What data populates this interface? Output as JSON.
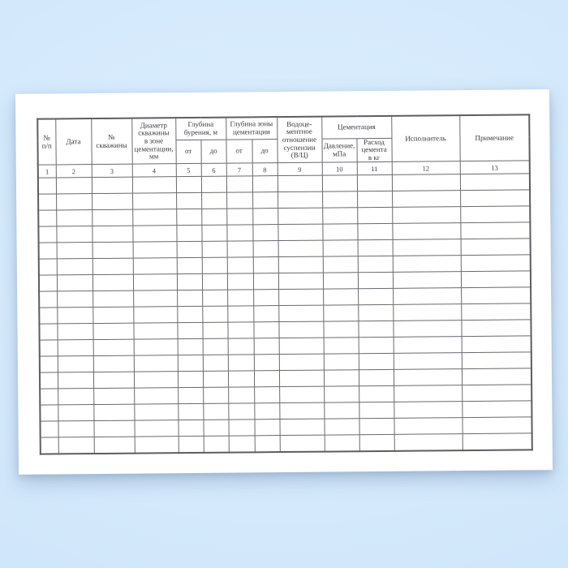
{
  "page": {
    "background_top_color": "#ddeefd",
    "background_bottom_color": "#c9e0f6",
    "paper_color": "#ffffff",
    "grid_line_color": "#6a6a70",
    "text_color": "#3b3b40"
  },
  "table": {
    "header": {
      "row_number": "№\nп/п",
      "date": "Дата",
      "well_number": "№\nскважины",
      "diameter": "Диаметр\nскважины\nв зоне\nцементации,\nмм",
      "drilling_depth": "Глубина\nбурения, м",
      "cementation_zone_depth": "Глубина зоны\nцементации",
      "water_cement_ratio": "Водоце-\nментное\nотношение\nсуспензии\n(В/Ц)",
      "cementation": "Цементация",
      "executor": "Исполнитель",
      "note": "Примечание"
    },
    "subheader": {
      "drilling_from": "от",
      "drilling_to": "до",
      "zone_from": "от",
      "zone_to": "до",
      "pressure": "Давление,\nмПа",
      "cement_consumption": "Расход\nцемента\nв кг"
    },
    "column_numbers": [
      "1",
      "2",
      "3",
      "4",
      "5",
      "6",
      "7",
      "8",
      "9",
      "10",
      "11",
      "12",
      "13"
    ],
    "empty_rows": 17,
    "columns_count": 13
  }
}
